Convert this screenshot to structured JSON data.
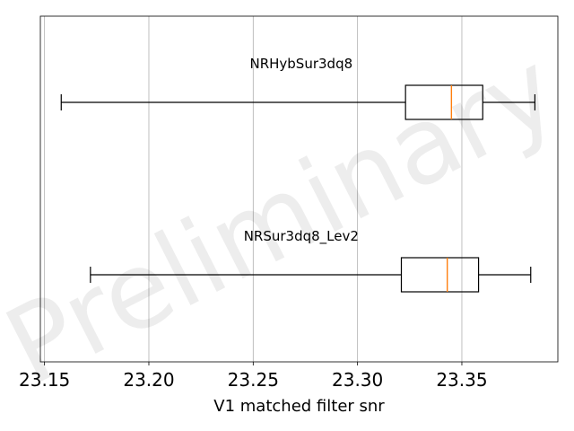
{
  "chart_data": {
    "type": "boxplot",
    "orientation": "horizontal",
    "xlabel": "V1 matched filter snr",
    "xlim": [
      23.148,
      23.396
    ],
    "xticks": [
      23.15,
      23.2,
      23.25,
      23.3,
      23.35
    ],
    "xtick_labels": [
      "23.15",
      "23.20",
      "23.25",
      "23.30",
      "23.35"
    ],
    "grid": "vertical",
    "watermark": "Preliminary",
    "median_color": "#ff7f0e",
    "box_color": "#000000",
    "grid_color": "#b0b0b0",
    "series": [
      {
        "name": "NRHybSur3dq8",
        "whisker_low": 23.158,
        "q1": 23.323,
        "median": 23.345,
        "q3": 23.36,
        "whisker_high": 23.385
      },
      {
        "name": "NRSur3dq8_Lev2",
        "whisker_low": 23.172,
        "q1": 23.321,
        "median": 23.343,
        "q3": 23.358,
        "whisker_high": 23.383
      }
    ]
  }
}
